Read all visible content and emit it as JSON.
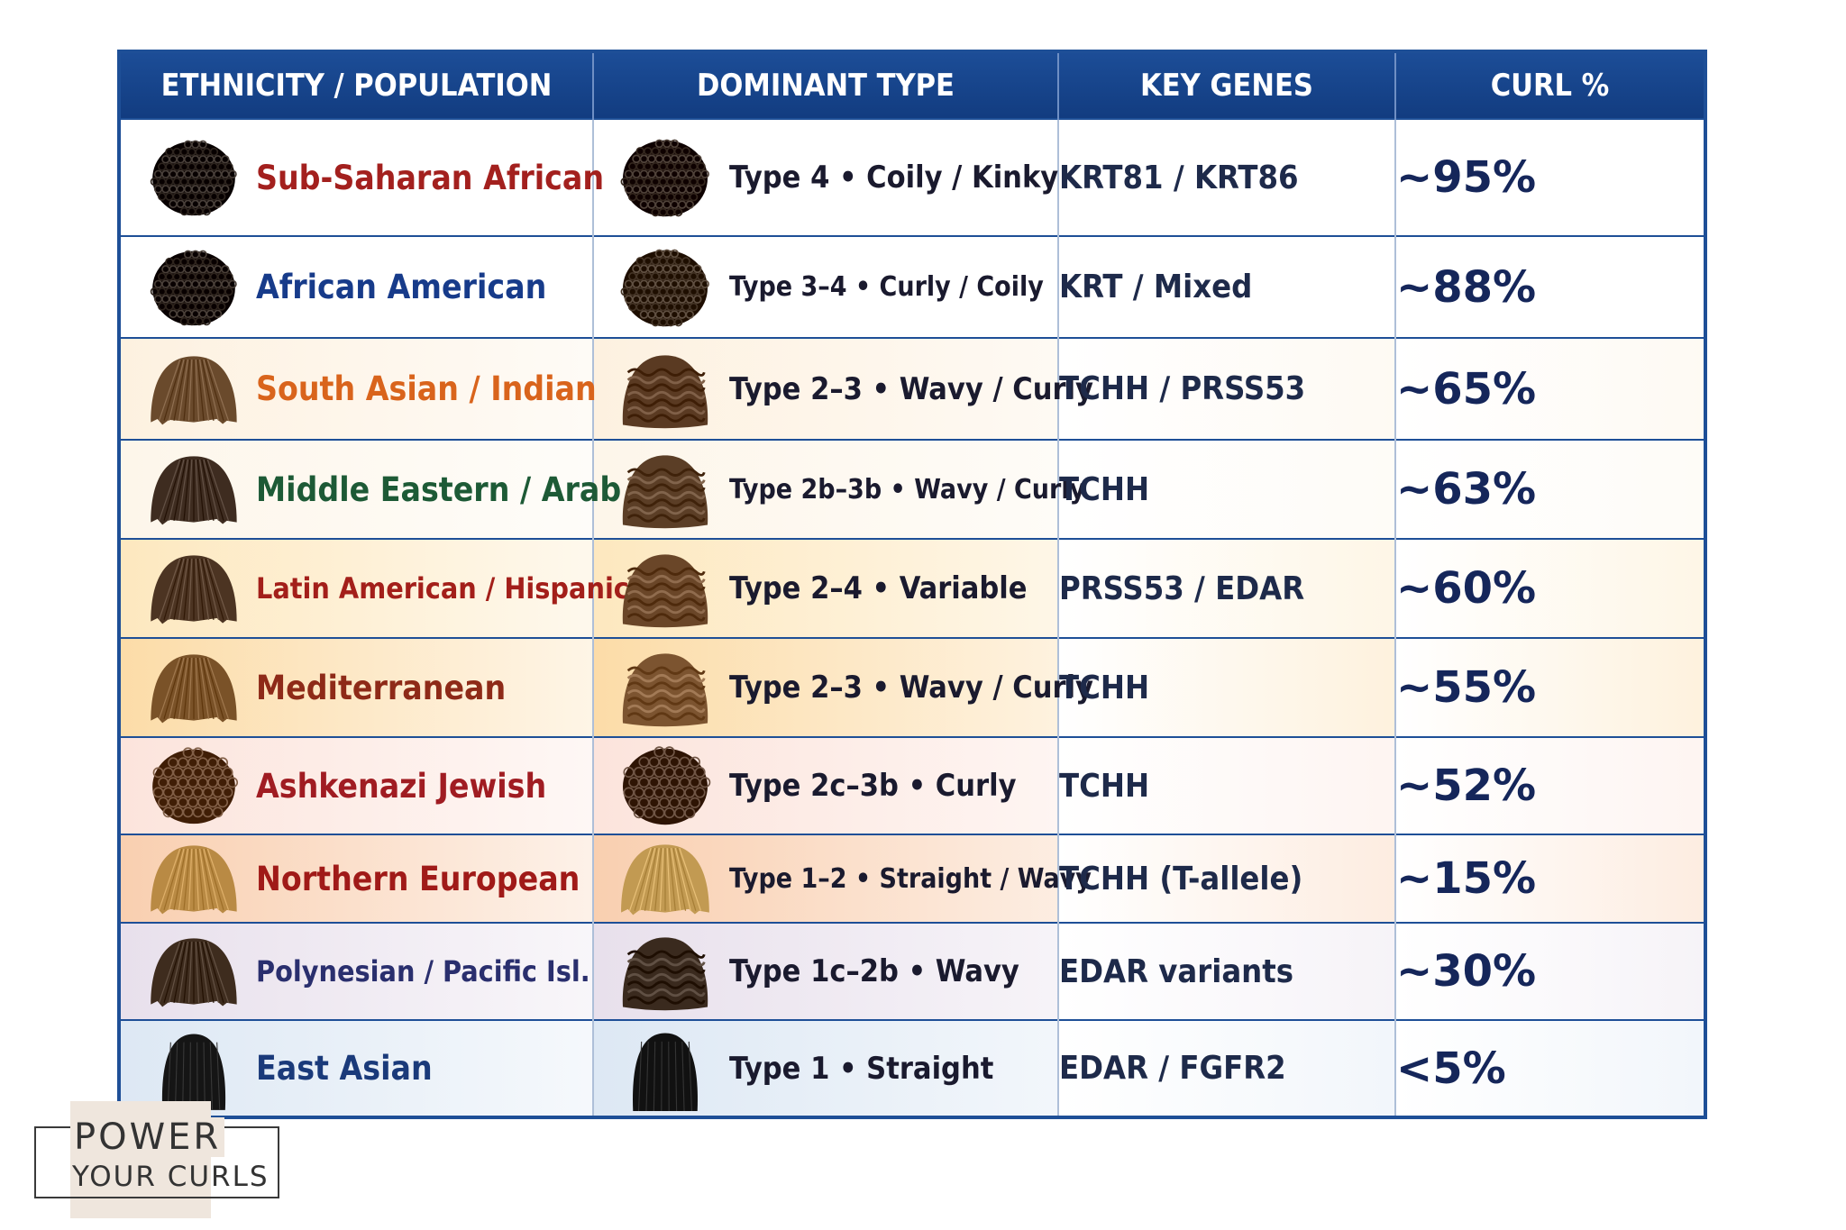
{
  "chart_data": {
    "type": "table",
    "columns": [
      "ETHNICITY / POPULATION",
      "DOMINANT TYPE",
      "KEY GENES",
      "CURL %"
    ],
    "rows": [
      {
        "ethnicity": "Sub-Saharan African",
        "type": "Type 4 • Coily / Kinky",
        "genes": "KRT81 / KRT86",
        "curl": "~95%",
        "eth_color": "#a3201e",
        "bg": "#ffffff",
        "hair1": {
          "style": "coily",
          "color": "#231a14"
        },
        "hair2": {
          "style": "coily",
          "color": "#2a1d14"
        }
      },
      {
        "ethnicity": "African American",
        "type": "Type 3–4 • Curly / Coily",
        "genes": "KRT / Mixed",
        "curl": "~88%",
        "eth_color": "#173b8a",
        "bg": "#ffffff",
        "hair1": {
          "style": "coily",
          "color": "#241a13"
        },
        "hair2": {
          "style": "coily",
          "color": "#3a2a1c"
        }
      },
      {
        "ethnicity": "South Asian / Indian",
        "type": "Type 2–3 • Wavy / Curly",
        "genes": "TCHH / PRSS53",
        "curl": "~65%",
        "eth_color": "#d9641c",
        "bg": "#fdf1e0",
        "hair1": {
          "style": "straight",
          "color": "#6a4a2c"
        },
        "hair2": {
          "style": "wavy",
          "color": "#5a3a22"
        }
      },
      {
        "ethnicity": "Middle Eastern / Arab",
        "type": "Type 2b–3b • Wavy / Curly",
        "genes": "TCHH",
        "curl": "~63%",
        "eth_color": "#1d5a36",
        "bg": "#fdf6ea",
        "hair1": {
          "style": "straight",
          "color": "#3e2c20"
        },
        "hair2": {
          "style": "wavy",
          "color": "#5b3e26"
        }
      },
      {
        "ethnicity": "Latin American / Hispanic",
        "type": "Type 2–4 • Variable",
        "genes": "PRSS53 / EDAR",
        "curl": "~60%",
        "eth_color": "#a31f1a",
        "bg": "#fde8bf",
        "hair1": {
          "style": "straight",
          "color": "#4c3422"
        },
        "hair2": {
          "style": "wavy",
          "color": "#6a4628"
        }
      },
      {
        "ethnicity": "Mediterranean",
        "type": "Type 2–3 • Wavy / Curly",
        "genes": "TCHH",
        "curl": "~55%",
        "eth_color": "#8e2a18",
        "bg": "#fcdca8",
        "hair1": {
          "style": "straight",
          "color": "#7a5228"
        },
        "hair2": {
          "style": "wavy",
          "color": "#7c5430"
        }
      },
      {
        "ethnicity": "Ashkenazi Jewish",
        "type": "Type 2c–3b • Curly",
        "genes": "TCHH",
        "curl": "~52%",
        "eth_color": "#a01c22",
        "bg": "#fce4dc",
        "hair1": {
          "style": "curly",
          "color": "#5c3a22"
        },
        "hair2": {
          "style": "curly",
          "color": "#4a3020"
        }
      },
      {
        "ethnicity": "Northern European",
        "type": "Type 1–2 • Straight / Wavy",
        "genes": "TCHH (T-allele)",
        "curl": "~15%",
        "eth_color": "#a01a18",
        "bg": "#f9cfb0",
        "hair1": {
          "style": "straight",
          "color": "#b98a44"
        },
        "hair2": {
          "style": "straight",
          "color": "#c29a52"
        }
      },
      {
        "ethnicity": "Polynesian / Pacific Isl.",
        "type": "Type 1c–2b • Wavy",
        "genes": "EDAR variants",
        "curl": "~30%",
        "eth_color": "#2a2f6e",
        "bg": "#e8e0ec",
        "hair1": {
          "style": "straight",
          "color": "#3e2c1e"
        },
        "hair2": {
          "style": "wavy",
          "color": "#3a2a1e"
        }
      },
      {
        "ethnicity": "East Asian",
        "type": "Type 1 • Straight",
        "genes": "EDAR / FGFR2",
        "curl": "<5%",
        "eth_color": "#1a3a7a",
        "bg": "#dde8f4",
        "hair1": {
          "style": "long",
          "color": "#151515"
        },
        "hair2": {
          "style": "long",
          "color": "#111111"
        }
      }
    ]
  },
  "logo": {
    "line1": "POWER",
    "line2": "YOUR CURLS"
  }
}
